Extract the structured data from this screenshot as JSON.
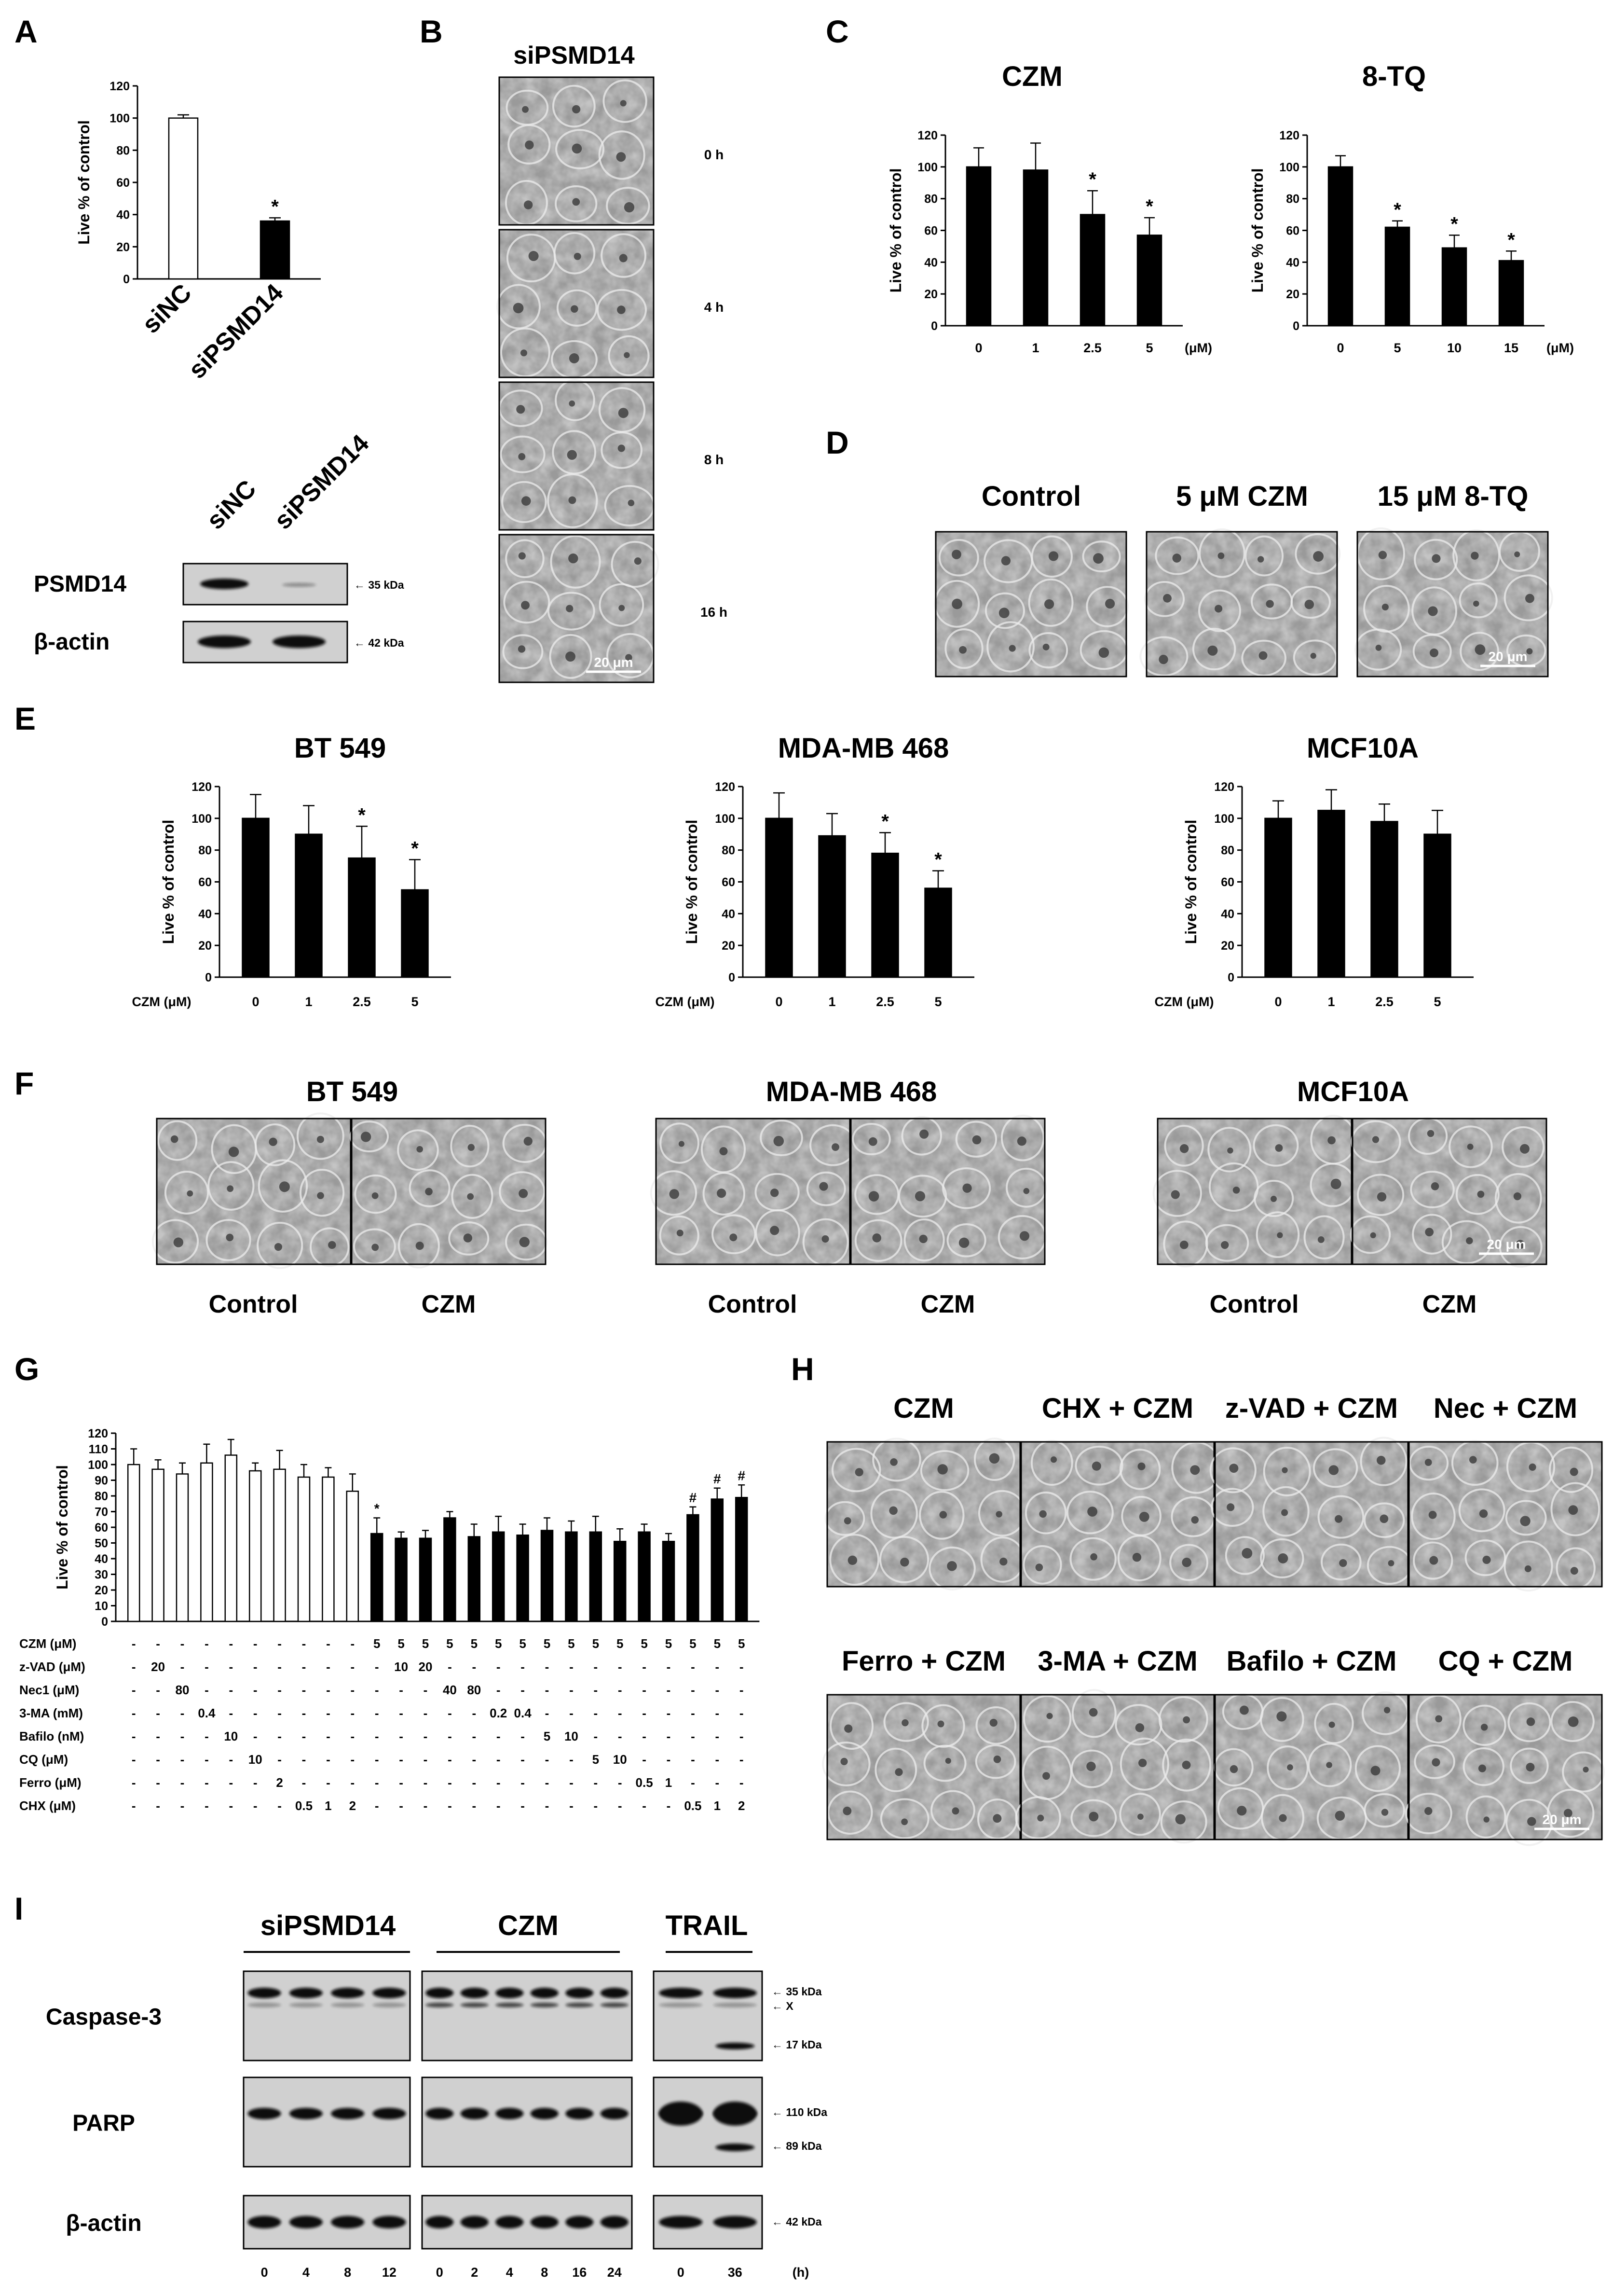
{
  "panels": {
    "A": "A",
    "B": "B",
    "C": "C",
    "D": "D",
    "E": "E",
    "F": "F",
    "G": "G",
    "H": "H",
    "I": "I"
  },
  "panelA": {
    "ylabel": "Live % of control",
    "yticks": [
      "0",
      "20",
      "40",
      "60",
      "80",
      "100",
      "120"
    ],
    "bars": [
      {
        "label": "siNC",
        "value": 100,
        "err": 2,
        "fill": "white"
      },
      {
        "label": "siPSMD14",
        "value": 36,
        "err": 2,
        "fill": "black",
        "sig": "*"
      }
    ],
    "blot": {
      "lanes": [
        "siNC",
        "siPSMD14"
      ],
      "rows": [
        {
          "label": "PSMD14",
          "marker": "← 35 kDa"
        },
        {
          "label": "β-actin",
          "marker": "← 42 kDa"
        }
      ]
    }
  },
  "panelB": {
    "title": "siPSMD14",
    "times": [
      "0 h",
      "4 h",
      "8 h",
      "16 h"
    ],
    "scale": "20 μm"
  },
  "panelC": {
    "charts": [
      {
        "title": "CZM",
        "ylabel": "Live % of control",
        "xticks": [
          "0",
          "1",
          "2.5",
          "5"
        ],
        "unit": "(μM)",
        "values": [
          100,
          98,
          70,
          57
        ],
        "errors": [
          12,
          17,
          15,
          11
        ],
        "sig": [
          "",
          "",
          "*",
          "*"
        ]
      },
      {
        "title": "8-TQ",
        "ylabel": "Live % of control",
        "xticks": [
          "0",
          "5",
          "10",
          "15"
        ],
        "unit": "(μM)",
        "values": [
          100,
          62,
          49,
          41
        ],
        "errors": [
          7,
          4,
          8,
          6
        ],
        "sig": [
          "",
          "*",
          "*",
          "*"
        ]
      }
    ]
  },
  "panelD": {
    "labels": [
      "Control",
      "5 μM CZM",
      "15 μM 8-TQ"
    ],
    "scale": "20 μm"
  },
  "panelE": {
    "xprefix": "CZM (μM)",
    "charts": [
      {
        "title": "BT 549",
        "xticks": [
          "0",
          "1",
          "2.5",
          "5"
        ],
        "values": [
          100,
          90,
          75,
          55
        ],
        "errors": [
          15,
          18,
          20,
          19
        ],
        "sig": [
          "",
          "",
          "*",
          "*"
        ]
      },
      {
        "title": "MDA-MB 468",
        "xticks": [
          "0",
          "1",
          "2.5",
          "5"
        ],
        "values": [
          100,
          89,
          78,
          56
        ],
        "errors": [
          16,
          14,
          13,
          11
        ],
        "sig": [
          "",
          "",
          "*",
          "*"
        ]
      },
      {
        "title": "MCF10A",
        "xticks": [
          "0",
          "1",
          "2.5",
          "5"
        ],
        "values": [
          100,
          105,
          98,
          90
        ],
        "errors": [
          11,
          13,
          11,
          15
        ],
        "sig": [
          "",
          "",
          "",
          ""
        ]
      }
    ],
    "ylabel": "Live % of control",
    "yticks": [
      "0",
      "20",
      "40",
      "60",
      "80",
      "100",
      "120"
    ]
  },
  "panelF": {
    "groups": [
      "BT 549",
      "MDA-MB 468",
      "MCF10A"
    ],
    "labels": [
      "Control",
      "CZM"
    ],
    "scale": "20 μm"
  },
  "panelG": {
    "ylabel": "Live % of control",
    "yticks": [
      "0",
      "10",
      "20",
      "30",
      "40",
      "50",
      "60",
      "70",
      "80",
      "90",
      "100",
      "110",
      "120"
    ],
    "values": [
      100,
      97,
      94,
      101,
      106,
      96,
      97,
      92,
      92,
      83,
      56,
      53,
      53,
      66,
      54,
      57,
      55,
      58,
      57,
      57,
      51,
      57,
      51,
      68,
      78,
      79
    ],
    "errors": [
      10,
      6,
      7,
      12,
      10,
      5,
      12,
      8,
      6,
      11,
      10,
      4,
      5,
      4,
      8,
      10,
      7,
      8,
      7,
      10,
      8,
      5,
      5,
      5,
      7,
      8
    ],
    "sig": [
      "",
      "",
      "",
      "",
      "",
      "",
      "",
      "",
      "",
      "",
      "*",
      "",
      "",
      "",
      "",
      "",
      "",
      "",
      "",
      "",
      "",
      "",
      "",
      "#",
      "#",
      "#"
    ],
    "table": [
      {
        "label": "CZM (μM)",
        "cells": [
          "-",
          "-",
          "-",
          "-",
          "-",
          "-",
          "-",
          "-",
          "-",
          "-",
          "5",
          "5",
          "5",
          "5",
          "5",
          "5",
          "5",
          "5",
          "5",
          "5",
          "5",
          "5",
          "5",
          "5",
          "5",
          "5"
        ]
      },
      {
        "label": "z-VAD (μM)",
        "cells": [
          "-",
          "20",
          "-",
          "-",
          "-",
          "-",
          "-",
          "-",
          "-",
          "-",
          "-",
          "10",
          "20",
          "-",
          "-",
          "-",
          "-",
          "-",
          "-",
          "-",
          "-",
          "-",
          "-",
          "-",
          "-",
          "-"
        ]
      },
      {
        "label": "Nec1 (μM)",
        "cells": [
          "-",
          "-",
          "80",
          "-",
          "-",
          "-",
          "-",
          "-",
          "-",
          "-",
          "-",
          "-",
          "-",
          "40",
          "80",
          "-",
          "-",
          "-",
          "-",
          "-",
          "-",
          "-",
          "-",
          "-",
          "-",
          "-"
        ]
      },
      {
        "label": "3-MA (mM)",
        "cells": [
          "-",
          "-",
          "-",
          "0.4",
          "-",
          "-",
          "-",
          "-",
          "-",
          "-",
          "-",
          "-",
          "-",
          "-",
          "-",
          "0.2",
          "0.4",
          "-",
          "-",
          "-",
          "-",
          "-",
          "-",
          "-",
          "-",
          "-"
        ]
      },
      {
        "label": "Bafilo (nM)",
        "cells": [
          "-",
          "-",
          "-",
          "-",
          "10",
          "-",
          "-",
          "-",
          "-",
          "-",
          "-",
          "-",
          "-",
          "-",
          "-",
          "-",
          "-",
          "5",
          "10",
          "-",
          "-",
          "-",
          "-",
          "-",
          "-",
          "-"
        ]
      },
      {
        "label": "CQ (μM)",
        "cells": [
          "-",
          "-",
          "-",
          "-",
          "-",
          "10",
          "-",
          "-",
          "-",
          "-",
          "-",
          "-",
          "-",
          "-",
          "-",
          "-",
          "-",
          "-",
          "-",
          "5",
          "10",
          "-",
          "-",
          "-",
          "-",
          "-"
        ]
      },
      {
        "label": "Ferro (μM)",
        "cells": [
          "-",
          "-",
          "-",
          "-",
          "-",
          "-",
          "2",
          "-",
          "-",
          "-",
          "-",
          "-",
          "-",
          "-",
          "-",
          "-",
          "-",
          "-",
          "-",
          "-",
          "-",
          "0.5",
          "1",
          "-",
          "-",
          "-"
        ]
      },
      {
        "label": "CHX (μM)",
        "cells": [
          "-",
          "-",
          "-",
          "-",
          "-",
          "-",
          "-",
          "0.5",
          "1",
          "2",
          "-",
          "-",
          "-",
          "-",
          "-",
          "-",
          "-",
          "-",
          "-",
          "-",
          "-",
          "-",
          "-",
          "0.5",
          "1",
          "2"
        ]
      }
    ]
  },
  "panelH": {
    "row1": [
      "CZM",
      "CHX + CZM",
      "z-VAD + CZM",
      "Nec + CZM"
    ],
    "row2": [
      "Ferro + CZM",
      "3-MA + CZM",
      "Bafilo + CZM",
      "CQ + CZM"
    ],
    "scale": "20 μm"
  },
  "panelI": {
    "groups": [
      "siPSMD14",
      "CZM",
      "TRAIL"
    ],
    "rows": [
      "Caspase-3",
      "PARP",
      "β-actin"
    ],
    "markers": {
      "casp": [
        "← 35 kDa",
        "← X",
        "← 17 kDa"
      ],
      "parp": [
        "← 110 kDa",
        "← 89 kDa"
      ],
      "actin": [
        "← 42 kDa"
      ]
    },
    "lanes": [
      [
        "0",
        "4",
        "8",
        "12"
      ],
      [
        "0",
        "2",
        "4",
        "8",
        "16",
        "24"
      ],
      [
        "0",
        "36"
      ]
    ],
    "unit": "(h)"
  }
}
